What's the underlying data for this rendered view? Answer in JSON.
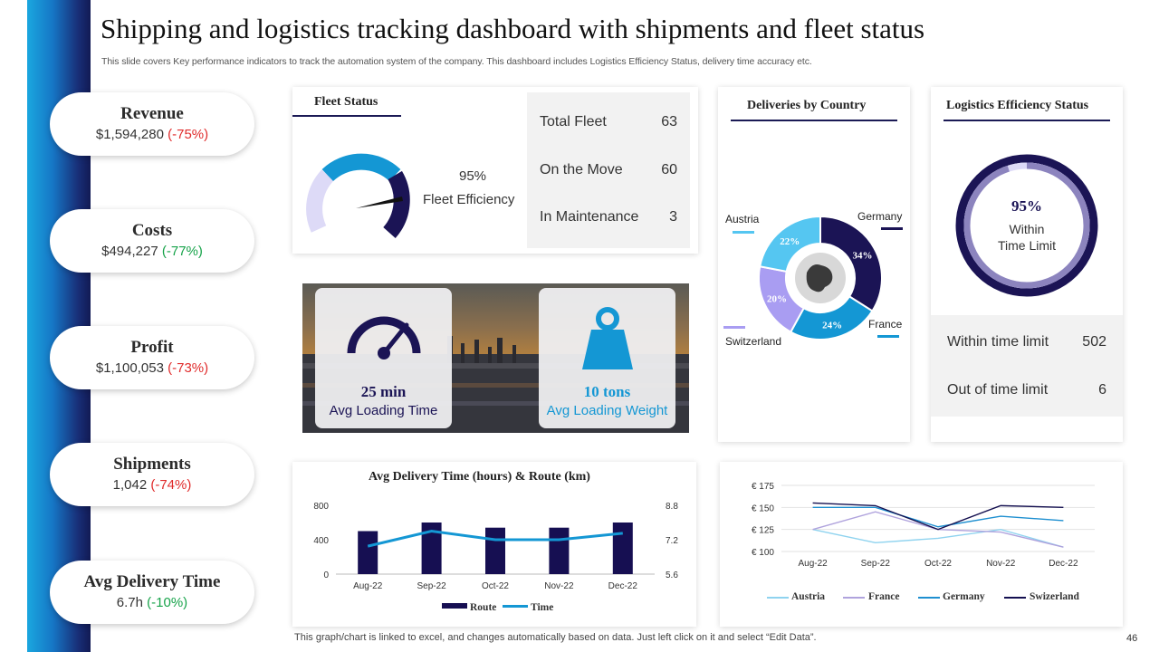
{
  "title": "Shipping and logistics tracking dashboard with shipments  and fleet status",
  "subtitle": "This slide covers Key performance indicators to track the automation system of the company. This dashboard includes Logistics Efficiency Status, delivery time accuracy etc.",
  "kpis": [
    {
      "label": "Revenue",
      "amount": "$1,594,280",
      "change": "(-75%)",
      "change_color": "#e02b2b"
    },
    {
      "label": "Costs",
      "amount": "$494,227",
      "change": "(-77%)",
      "change_color": "#17a34a"
    },
    {
      "label": "Profit",
      "amount": "$1,100,053",
      "change": "(-73%)",
      "change_color": "#e02b2b"
    },
    {
      "label": "Shipments",
      "amount": "1,042",
      "change": "(-74%)",
      "change_color": "#e02b2b"
    },
    {
      "label": "Avg Delivery  Time",
      "amount": "6.7h",
      "change": "(-10%)",
      "change_color": "#17a34a"
    }
  ],
  "fleet": {
    "title": "Fleet Status",
    "efficiency_value": "95%",
    "efficiency_label": "Fleet Efficiency",
    "efficiency_fraction": 0.95,
    "rows": [
      {
        "label": "Total Fleet",
        "value": "63"
      },
      {
        "label": "On the Move",
        "value": "60"
      },
      {
        "label": "In Maintenance",
        "value": "3"
      }
    ]
  },
  "loading": {
    "time_value": "25 min",
    "time_label": "Avg Loading Time",
    "weight_value": "10 tons",
    "weight_label": "Avg Loading Weight"
  },
  "deliveries": {
    "title": "Deliveries by Country",
    "slices": [
      {
        "country": "Germany",
        "pct": 34,
        "label": "34%",
        "color": "#1b1455"
      },
      {
        "country": "France",
        "pct": 24,
        "label": "24%",
        "color": "#1497d4"
      },
      {
        "country": "Switzerland",
        "pct": 20,
        "label": "20%",
        "color": "#a99df2"
      },
      {
        "country": "Austria",
        "pct": 22,
        "label": "22%",
        "color": "#55c6f1"
      }
    ]
  },
  "efficiency": {
    "title": "Logistics Efficiency  Status",
    "value": "95%",
    "fraction": 0.95,
    "label_line1": "Within",
    "label_line2": "Time Limit",
    "rows": [
      {
        "label": "Within time limit",
        "value": "502"
      },
      {
        "label": "Out of time limit",
        "value": "6"
      }
    ]
  },
  "chart_data": [
    {
      "type": "bar",
      "title": "Avg Delivery Time (hours)  & Route (km)",
      "categories": [
        "Aug-22",
        "Sep-22",
        "Oct-22",
        "Nov-22",
        "Dec-22"
      ],
      "series": [
        {
          "name": "Route",
          "kind": "bar",
          "axis": "left",
          "values": [
            500,
            600,
            540,
            540,
            600
          ],
          "color": "#160f52"
        },
        {
          "name": "Time",
          "kind": "line",
          "axis": "right",
          "values": [
            6.9,
            7.6,
            7.2,
            7.2,
            7.5
          ],
          "color": "#1497d4"
        }
      ],
      "ylim_left": [
        0,
        800
      ],
      "yticks_left": [
        "0",
        "400",
        "800"
      ],
      "ylim_right": [
        5.6,
        8.8
      ],
      "yticks_right": [
        "5.6",
        "7.2",
        "8.8"
      ]
    },
    {
      "type": "line",
      "title": "",
      "categories": [
        "Aug-22",
        "Sep-22",
        "Oct-22",
        "Nov-22",
        "Dec-22"
      ],
      "series": [
        {
          "name": "Austria",
          "values": [
            125,
            110,
            115,
            125,
            105
          ],
          "color": "#8fd3ef"
        },
        {
          "name": "France",
          "values": [
            125,
            145,
            125,
            122,
            105
          ],
          "color": "#b0a3dd"
        },
        {
          "name": "Germany",
          "values": [
            150,
            150,
            128,
            140,
            135
          ],
          "color": "#1e8fd0"
        },
        {
          "name": "Swizerland",
          "values": [
            155,
            152,
            125,
            152,
            150
          ],
          "color": "#141050"
        }
      ],
      "ylim": [
        100,
        175
      ],
      "yticks": [
        "€ 100",
        "€ 125",
        "€ 150",
        "€ 175"
      ],
      "ytick_values": [
        100,
        125,
        150,
        175
      ]
    }
  ],
  "footnote": "This graph/chart is linked to excel,  and changes automatically based on data. Just left click on it and select “Edit Data”.",
  "page_number": "46"
}
